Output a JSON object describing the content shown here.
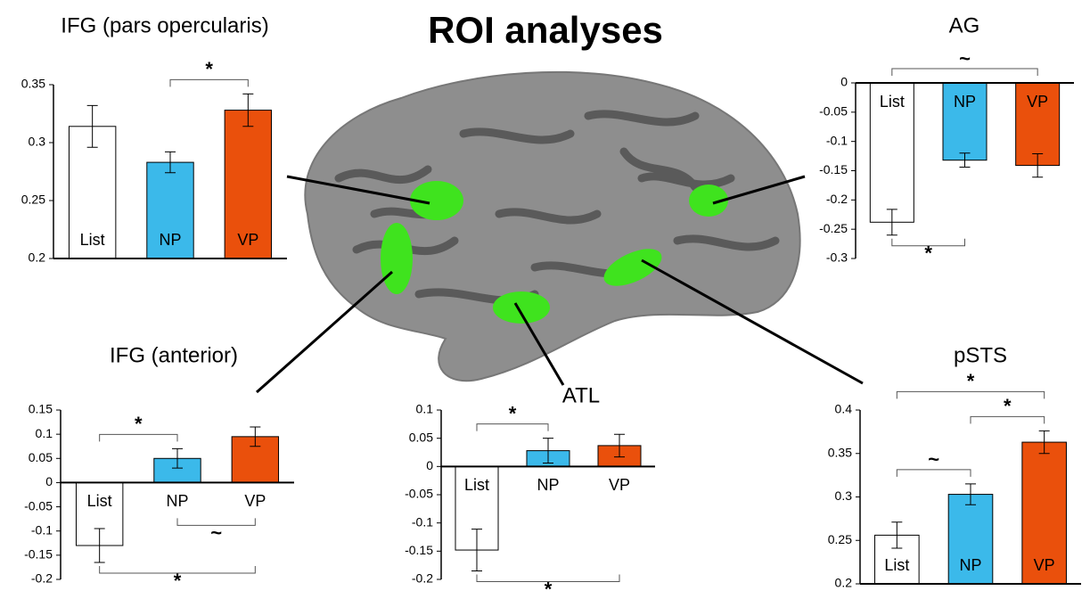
{
  "title": "ROI analyses",
  "chart_data": [
    {
      "type": "bar",
      "title": "IFG (pars opercularis)",
      "categories": [
        "List",
        "NP",
        "VP"
      ],
      "values": [
        0.314,
        0.283,
        0.328
      ],
      "errors": [
        0.018,
        0.009,
        0.014
      ],
      "colors": [
        "#ffffff",
        "#3bb9ea",
        "#ea500c"
      ],
      "ylim": [
        0.2,
        0.35
      ],
      "yticks": [
        0.2,
        0.25,
        0.3,
        0.35
      ],
      "annotations": [
        {
          "label": "*",
          "between": [
            1,
            2
          ],
          "side": "top"
        }
      ]
    },
    {
      "type": "bar",
      "title": "AG",
      "categories": [
        "List",
        "NP",
        "VP"
      ],
      "values": [
        -0.238,
        -0.132,
        -0.141
      ],
      "errors": [
        0.022,
        0.012,
        0.02
      ],
      "colors": [
        "#ffffff",
        "#3bb9ea",
        "#ea500c"
      ],
      "ylim": [
        -0.3,
        0
      ],
      "yticks": [
        -0.3,
        -0.25,
        -0.2,
        -0.15,
        -0.1,
        -0.05,
        0
      ],
      "annotations": [
        {
          "label": "~",
          "between": [
            0,
            2
          ],
          "side": "top"
        },
        {
          "label": "*",
          "between": [
            0,
            1
          ],
          "side": "bottom"
        }
      ]
    },
    {
      "type": "bar",
      "title": "IFG (anterior)",
      "categories": [
        "List",
        "NP",
        "VP"
      ],
      "values": [
        -0.13,
        0.05,
        0.095
      ],
      "errors": [
        0.035,
        0.02,
        0.02
      ],
      "colors": [
        "#ffffff",
        "#3bb9ea",
        "#ea500c"
      ],
      "ylim": [
        -0.2,
        0.15
      ],
      "yticks": [
        -0.2,
        -0.15,
        -0.1,
        -0.05,
        0,
        0.05,
        0.1,
        0.15
      ],
      "annotations": [
        {
          "label": "*",
          "between": [
            0,
            1
          ],
          "side": "top"
        },
        {
          "label": "~",
          "between": [
            1,
            2
          ],
          "side": "bottom"
        },
        {
          "label": "*",
          "between": [
            0,
            2
          ],
          "side": "bottom"
        }
      ]
    },
    {
      "type": "bar",
      "title": "ATL",
      "categories": [
        "List",
        "NP",
        "VP"
      ],
      "values": [
        -0.148,
        0.028,
        0.037
      ],
      "errors": [
        0.037,
        0.022,
        0.02
      ],
      "colors": [
        "#ffffff",
        "#3bb9ea",
        "#ea500c"
      ],
      "ylim": [
        -0.2,
        0.1
      ],
      "yticks": [
        -0.2,
        -0.15,
        -0.1,
        -0.05,
        0,
        0.05,
        0.1
      ],
      "annotations": [
        {
          "label": "*",
          "between": [
            0,
            1
          ],
          "side": "top"
        },
        {
          "label": "*",
          "between": [
            0,
            2
          ],
          "side": "bottom"
        }
      ]
    },
    {
      "type": "bar",
      "title": "pSTS",
      "categories": [
        "List",
        "NP",
        "VP"
      ],
      "values": [
        0.256,
        0.303,
        0.363
      ],
      "errors": [
        0.015,
        0.012,
        0.013
      ],
      "colors": [
        "#ffffff",
        "#3bb9ea",
        "#ea500c"
      ],
      "ylim": [
        0.2,
        0.4
      ],
      "yticks": [
        0.2,
        0.25,
        0.3,
        0.35,
        0.4
      ],
      "annotations": [
        {
          "label": "~",
          "between": [
            0,
            1
          ],
          "side": "top"
        },
        {
          "label": "*",
          "between": [
            1,
            2
          ],
          "side": "top"
        },
        {
          "label": "*",
          "between": [
            0,
            2
          ],
          "side": "top"
        }
      ]
    }
  ]
}
